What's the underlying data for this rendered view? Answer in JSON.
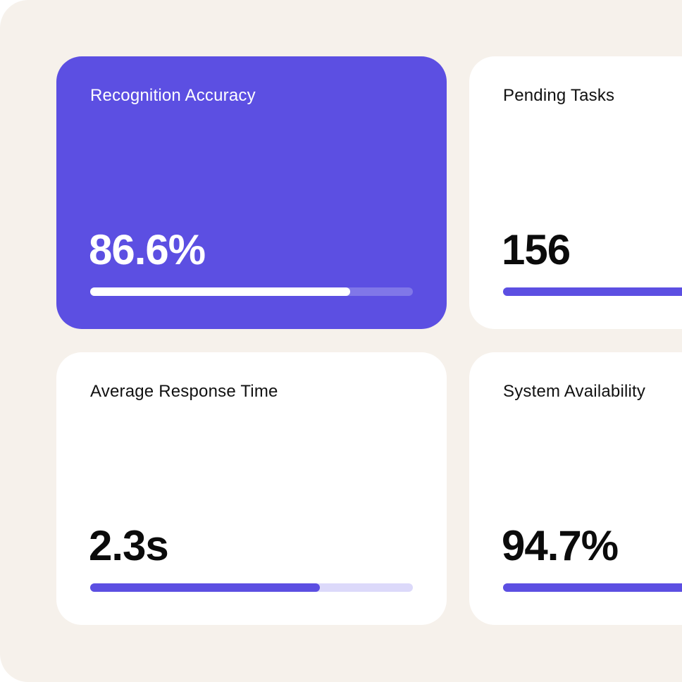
{
  "colors": {
    "accent": "#5c4fe2",
    "background": "#f6f1eb",
    "card": "#ffffff"
  },
  "cards": [
    {
      "label": "Recognition Accuracy",
      "value": "86.6%",
      "progress": 0.806,
      "highlighted": true
    },
    {
      "label": "Pending Tasks",
      "value": "156",
      "progress": 1.0,
      "highlighted": false
    },
    {
      "label": "Average Response Time",
      "value": "2.3s",
      "progress": 0.712,
      "highlighted": false
    },
    {
      "label": "System Availability",
      "value": "94.7%",
      "progress": 1.0,
      "highlighted": false
    }
  ]
}
